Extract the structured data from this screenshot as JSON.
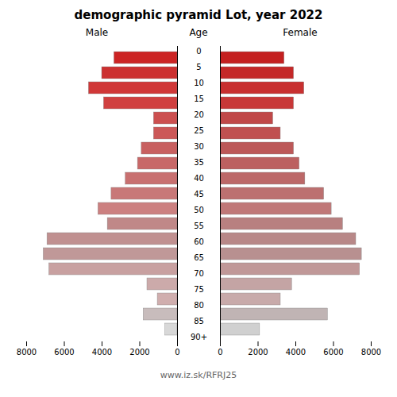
{
  "chart_data": {
    "type": "bar",
    "orientation": "horizontal",
    "title": "demographic pyramid Lot, year 2022",
    "ylabel": "Age",
    "caption": "www.iz.sk/RFRJ25",
    "categories": [
      "90+",
      "85",
      "80",
      "75",
      "70",
      "65",
      "60",
      "55",
      "50",
      "45",
      "40",
      "35",
      "30",
      "25",
      "20",
      "15",
      "10",
      "5",
      "0"
    ],
    "series": [
      {
        "name": "Male",
        "values": [
          650,
          1800,
          1050,
          1600,
          6800,
          7100,
          6900,
          3700,
          4200,
          3500,
          2750,
          2100,
          1900,
          1250,
          1250,
          3900,
          4700,
          4000,
          3350
        ],
        "colors": [
          "#d8d8d8",
          "#c8bcbc",
          "#d0aeae",
          "#ccaaaa",
          "#c8a0a0",
          "#c09898",
          "#c09090",
          "#c08888",
          "#cc8080",
          "#c87878",
          "#c87070",
          "#c86868",
          "#c86060",
          "#cc5858",
          "#cc5050",
          "#d04040",
          "#d03838",
          "#cc3030",
          "#cc2424"
        ]
      },
      {
        "name": "Female",
        "values": [
          2100,
          5700,
          3200,
          3800,
          7400,
          7500,
          7200,
          6500,
          5900,
          5500,
          4500,
          4200,
          3900,
          3200,
          2800,
          3900,
          4450,
          3900,
          3400
        ],
        "colors": [
          "#d0d0d0",
          "#c0b4b4",
          "#c8aaaa",
          "#c4a4a4",
          "#c09898",
          "#b89090",
          "#b88888",
          "#b88080",
          "#c07878",
          "#bc7070",
          "#bc6868",
          "#bc6060",
          "#bc5858",
          "#c05050",
          "#c04848",
          "#c83838",
          "#c83030",
          "#c42828",
          "#c42020"
        ]
      }
    ],
    "xlim": [
      0,
      8000
    ],
    "xticks": [
      0,
      2000,
      4000,
      6000,
      8000
    ],
    "grid": false
  }
}
